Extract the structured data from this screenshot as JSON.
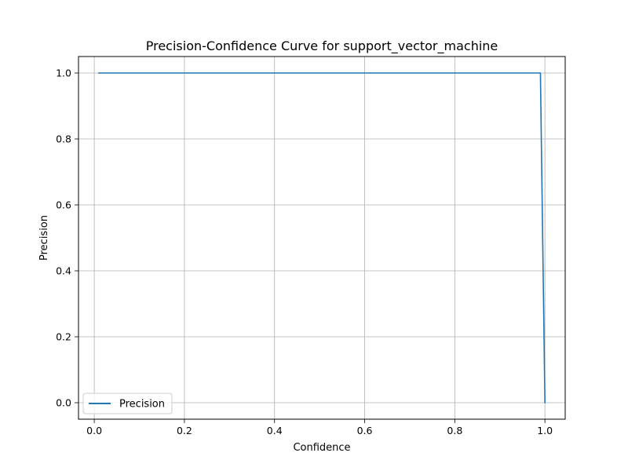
{
  "chart_data": {
    "type": "line",
    "title": "Precision-Confidence Curve for support_vector_machine",
    "xlabel": "Confidence",
    "ylabel": "Precision",
    "xlim": [
      -0.035,
      1.045
    ],
    "ylim": [
      -0.05,
      1.05
    ],
    "xticks": [
      0.0,
      0.2,
      0.4,
      0.6,
      0.8,
      1.0
    ],
    "xtick_labels": [
      "0.0",
      "0.2",
      "0.4",
      "0.6",
      "0.8",
      "1.0"
    ],
    "yticks": [
      0.0,
      0.2,
      0.4,
      0.6,
      0.8,
      1.0
    ],
    "ytick_labels": [
      "0.0",
      "0.2",
      "0.4",
      "0.6",
      "0.8",
      "1.0"
    ],
    "grid": true,
    "legend": {
      "placement": "lower-left",
      "entries": [
        "Precision"
      ]
    },
    "series": [
      {
        "name": "Precision",
        "color": "#1f77b4",
        "x": [
          0.01,
          0.99,
          1.0
        ],
        "y": [
          1.0,
          1.0,
          0.0
        ]
      }
    ]
  }
}
